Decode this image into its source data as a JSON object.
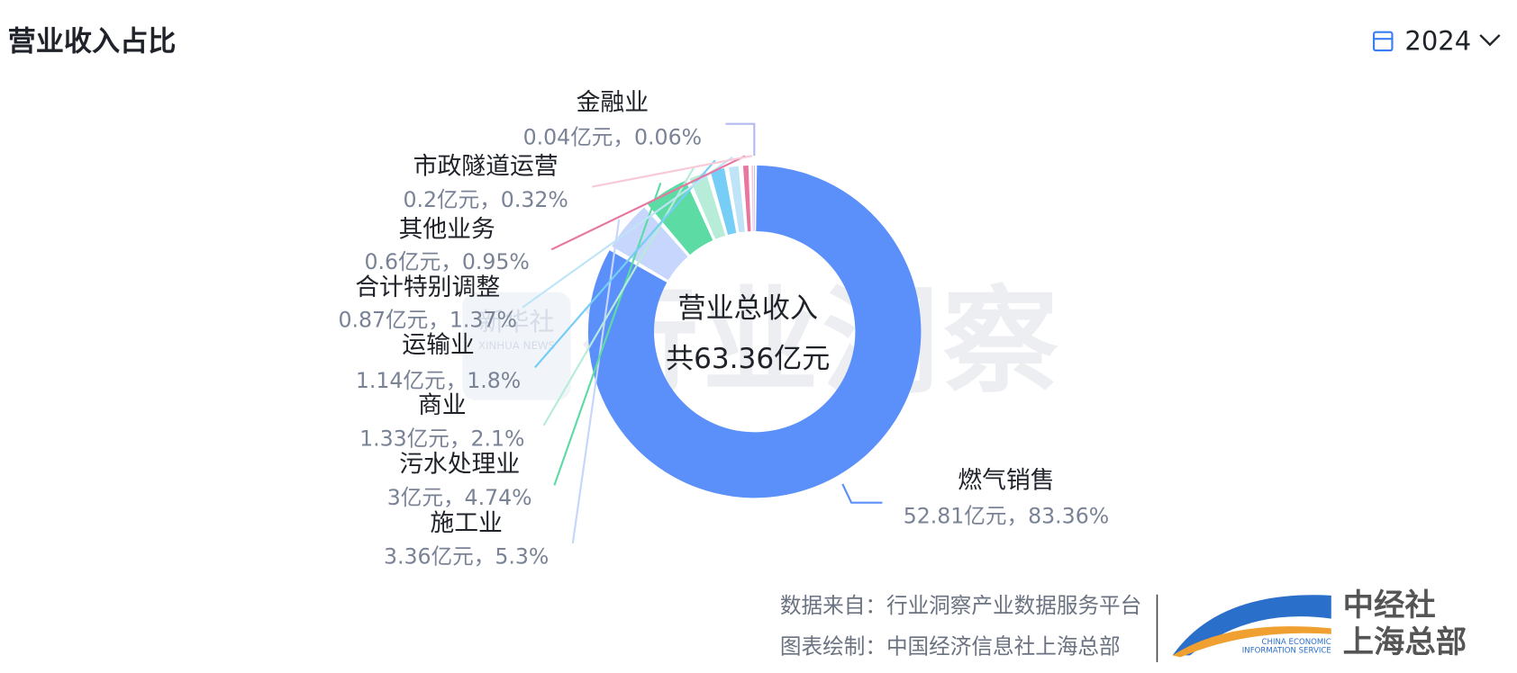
{
  "header": {
    "title": "营业收入占比",
    "year": "2024"
  },
  "watermark": {
    "main": "行业洞察",
    "badge": "新华社",
    "badge_en": "XINHUA NEWS"
  },
  "chart_data": {
    "type": "donut",
    "center_label": "营业总收入",
    "center_value": "共63.36亿元",
    "categories": [
      "燃气销售",
      "施工业",
      "污水处理业",
      "商业",
      "运输业",
      "合计特别调整",
      "其他业务",
      "市政隧道运营",
      "金融业"
    ],
    "values": [
      52.81,
      3.36,
      3,
      1.33,
      1.14,
      0.87,
      0.6,
      0.2,
      0.04
    ],
    "value_labels": [
      "52.81亿元，83.36%",
      "3.36亿元，5.3%",
      "3亿元，4.74%",
      "1.33亿元，2.1%",
      "1.14亿元，1.8%",
      "0.87亿元，1.37%",
      "0.6亿元，0.95%",
      "0.2亿元，0.32%",
      "0.04亿元，0.06%"
    ],
    "colors": [
      "#5b8ff9",
      "#c6d6fc",
      "#5ddba4",
      "#b6ecd8",
      "#76cdf6",
      "#bfe4f7",
      "#e8769e",
      "#f9c9d6",
      "#b4b9f0"
    ]
  },
  "footer": {
    "source": "数据来自：行业洞察产业数据服务平台",
    "credit": "图表绘制：中国经济信息社上海总部",
    "logo_cn": [
      "中经社",
      "上海总部"
    ],
    "logo_en": [
      "CHINA ECONOMIC",
      "INFORMATION SERVICE"
    ]
  }
}
